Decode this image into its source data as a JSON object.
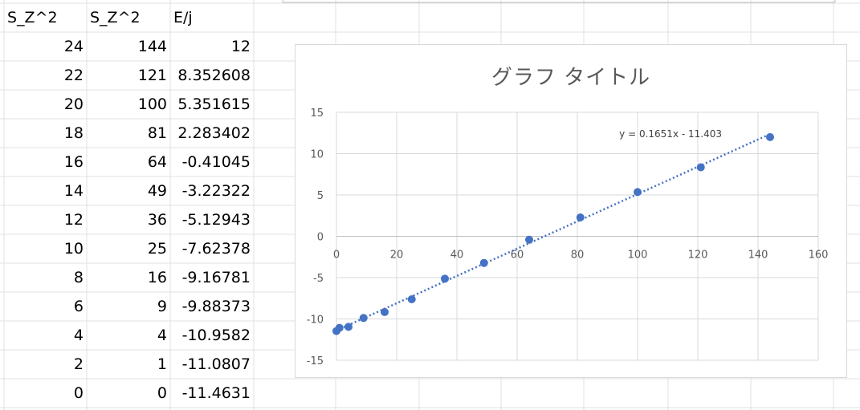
{
  "sheet": {
    "headers": [
      "S_Z^2",
      "S_Z^2",
      "E/j"
    ],
    "rows": [
      [
        "24",
        "144",
        "12"
      ],
      [
        "22",
        "121",
        "8.352608"
      ],
      [
        "20",
        "100",
        "5.351615"
      ],
      [
        "18",
        "81",
        "2.283402"
      ],
      [
        "16",
        "64",
        "-0.41045"
      ],
      [
        "14",
        "49",
        "-3.22322"
      ],
      [
        "12",
        "36",
        "-5.12943"
      ],
      [
        "10",
        "25",
        "-7.62378"
      ],
      [
        "8",
        "16",
        "-9.16781"
      ],
      [
        "6",
        "9",
        "-9.88373"
      ],
      [
        "4",
        "4",
        "-10.9582"
      ],
      [
        "2",
        "1",
        "-11.0807"
      ],
      [
        "0",
        "0",
        "-11.4631"
      ]
    ]
  },
  "colors": {
    "gridline": "#d9d9d9",
    "marker": "#4472c4",
    "trendline": "#4472c4",
    "text": "#595959"
  },
  "chart_data": {
    "type": "scatter",
    "title": "グラフ タイトル",
    "x": [
      144,
      121,
      100,
      81,
      64,
      49,
      36,
      25,
      16,
      9,
      4,
      1,
      0
    ],
    "y": [
      12,
      8.352608,
      5.351615,
      2.283402,
      -0.41045,
      -3.22322,
      -5.12943,
      -7.62378,
      -9.16781,
      -9.88373,
      -10.9582,
      -11.0807,
      -11.4631
    ],
    "xlim": [
      0,
      160
    ],
    "ylim": [
      -15,
      15
    ],
    "x_ticks": [
      "0",
      "20",
      "40",
      "60",
      "80",
      "100",
      "120",
      "140",
      "160"
    ],
    "y_ticks": [
      "15",
      "10",
      "5",
      "0",
      "-5",
      "-10",
      "-15"
    ],
    "trendline": {
      "type": "linear",
      "slope": 0.1651,
      "intercept": -11.403,
      "equation": "y = 0.1651x - 11.403"
    },
    "grid": true,
    "legend": "none"
  }
}
